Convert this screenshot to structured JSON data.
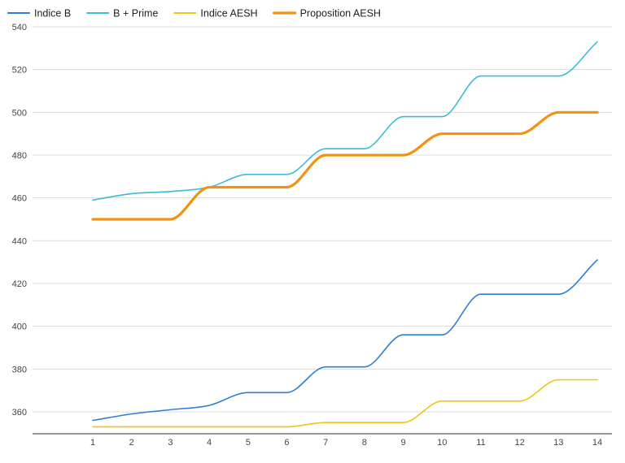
{
  "chart_data": {
    "type": "line",
    "title": "",
    "xlabel": "",
    "ylabel": "",
    "x": [
      1,
      2,
      3,
      4,
      5,
      6,
      7,
      8,
      9,
      10,
      11,
      12,
      13,
      14
    ],
    "ylim": [
      350,
      540
    ],
    "yticks": [
      360,
      380,
      400,
      420,
      440,
      460,
      480,
      500,
      520,
      540
    ],
    "grid": true,
    "legend_position": "top-left",
    "series": [
      {
        "name": "Indice B",
        "color": "#2f7ed8",
        "line_width": "thin",
        "values": [
          356,
          359,
          361,
          363,
          369,
          369,
          381,
          381,
          396,
          396,
          415,
          415,
          415,
          431
        ]
      },
      {
        "name": "B + Prime",
        "color": "#3cbcd4",
        "line_width": "thin",
        "values": [
          459,
          462,
          463,
          465,
          471,
          471,
          483,
          483,
          498,
          498,
          517,
          517,
          517,
          533
        ]
      },
      {
        "name": "Indice AESH",
        "color": "#f2c418",
        "line_width": "thin",
        "values": [
          353,
          353,
          353,
          353,
          353,
          353,
          355,
          355,
          355,
          365,
          365,
          365,
          375,
          375
        ]
      },
      {
        "name": "Proposition AESH",
        "color": "#f39211",
        "line_width": "thick",
        "values": [
          450,
          450,
          450,
          465,
          465,
          465,
          480,
          480,
          480,
          490,
          490,
          490,
          500,
          500
        ]
      }
    ]
  }
}
